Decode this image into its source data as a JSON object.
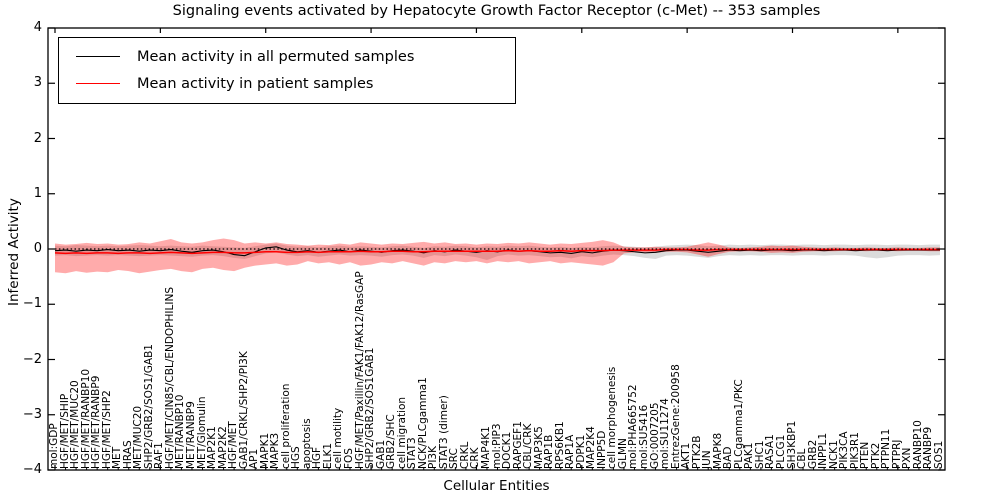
{
  "chart_data": {
    "type": "line",
    "title": "Signaling events activated by Hepatocyte Growth Factor Receptor (c-Met) -- 353 samples",
    "xlabel": "Cellular Entities",
    "ylabel": "Inferred Activity",
    "ylim": [
      -4,
      4
    ],
    "ytick_labels": [
      "4",
      "3",
      "2",
      "1",
      "0",
      "−1",
      "−2",
      "−3",
      "−4"
    ],
    "grid": false,
    "zero_line": {
      "style": "dotted",
      "color": "#000000",
      "value": 0
    },
    "legend": {
      "position": "upper left",
      "items": [
        {
          "label": "Mean activity in all permuted samples",
          "color": "#000000"
        },
        {
          "label": "Mean activity in patient samples",
          "color": "#ff0000"
        }
      ]
    },
    "band_colors": {
      "permuted": "#999999",
      "patient": "#ff0000"
    },
    "band_opacity": {
      "permuted": 0.35,
      "patient": 0.33
    },
    "categories": [
      "mol:GDP",
      "HGF/MET/SHIP",
      "HGF/MET/MUC20",
      "HGF/MET/RANBP10",
      "HGF/MET/RANBP9",
      "HGF/MET/SHP2",
      "MET",
      "HRAS",
      "MET/MUC20",
      "SHP2/GRB2/SOS1/GAB1",
      "RAF1",
      "HGF/MET/CIN85/CBL/ENDOPHILINS",
      "MET/RANBP10",
      "MET/RANBP9",
      "MET/Glomulin",
      "MAP2K1",
      "MAP2K2",
      "HGF/MET",
      "GAB1/CRKL/SHP2/PI3K",
      "AP1",
      "MAPK1",
      "MAPK3",
      "cell proliferation",
      "HGS",
      "apoptosis",
      "HGF",
      "ELK1",
      "cell motility",
      "FOS",
      "HGF/MET/Paxillin/FAK1/FAK12/RasGAP",
      "SHP2/GRB2/SOS1GAB1",
      "GAB1",
      "GRB2/SHC",
      "cell migration",
      "STAT3",
      "NCK/PLCgamma1",
      "PI3K",
      "STAT3 (dimer)",
      "SRC",
      "CRKL",
      "CRK",
      "MAP4K1",
      "mol:PIP3",
      "DOCK1",
      "RAPGEF1",
      "CBL/CRK",
      "MAP3K5",
      "RAP1B",
      "RPS6KB1",
      "RAP1A",
      "PDPK1",
      "MAP2K4",
      "INPP5D",
      "cell morphogenesis",
      "GLMN",
      "mol:PHA665752",
      "mol:SU5416",
      "GO:0007205",
      "mol:SU11274",
      "EntrezGene:200958",
      "AKT1",
      "PTK2B",
      "JUN",
      "MAPK8",
      "BAD",
      "PLCgamma1/PKC",
      "PAK1",
      "SHC1",
      "RASA1",
      "PLCG1",
      "SH3KBP1",
      "CBL",
      "GRB2",
      "INPPL1",
      "NCK1",
      "PIK3CA",
      "PIK3R1",
      "PTEN",
      "PTK2",
      "PTPN11",
      "PTPRJ",
      "PXN",
      "RANBP10",
      "RANBP9",
      "SOS1"
    ],
    "series": [
      {
        "name": "permuted_mean",
        "color": "#000000",
        "values": [
          -0.03,
          -0.02,
          -0.04,
          -0.02,
          -0.03,
          -0.01,
          -0.03,
          -0.02,
          -0.04,
          -0.02,
          -0.03,
          -0.01,
          -0.04,
          -0.06,
          -0.03,
          -0.02,
          -0.05,
          -0.1,
          -0.12,
          -0.05,
          0.02,
          0.04,
          -0.02,
          -0.05,
          -0.03,
          -0.06,
          -0.04,
          -0.02,
          -0.05,
          -0.02,
          -0.04,
          -0.06,
          -0.03,
          -0.02,
          -0.04,
          -0.07,
          -0.03,
          -0.05,
          -0.02,
          -0.04,
          -0.06,
          -0.03,
          -0.05,
          -0.02,
          -0.04,
          -0.03,
          -0.05,
          -0.07,
          -0.06,
          -0.08,
          -0.05,
          -0.07,
          -0.04,
          -0.02,
          -0.03,
          -0.05,
          -0.07,
          -0.06,
          -0.03,
          -0.02,
          -0.02,
          -0.04,
          -0.06,
          -0.04,
          -0.02,
          -0.03,
          -0.02,
          -0.03,
          -0.02,
          -0.02,
          -0.03,
          -0.02,
          -0.02,
          -0.03,
          -0.02,
          -0.02,
          -0.03,
          -0.02,
          -0.02,
          -0.03,
          -0.02,
          -0.02,
          -0.02,
          -0.02,
          -0.02
        ]
      },
      {
        "name": "permuted_band_upper",
        "color": "#999999",
        "values": [
          0.06,
          0.05,
          0.07,
          0.06,
          0.05,
          0.06,
          0.05,
          0.06,
          0.07,
          0.06,
          0.05,
          0.06,
          0.05,
          0.04,
          0.06,
          0.05,
          0.04,
          0.03,
          0.02,
          0.05,
          0.08,
          0.1,
          0.06,
          0.04,
          0.05,
          0.03,
          0.05,
          0.06,
          0.04,
          0.05,
          0.04,
          0.03,
          0.05,
          0.06,
          0.04,
          0.02,
          0.05,
          0.04,
          0.06,
          0.05,
          0.03,
          0.05,
          0.04,
          0.06,
          0.05,
          0.06,
          0.04,
          0.03,
          0.04,
          0.02,
          0.04,
          0.03,
          0.05,
          0.06,
          0.05,
          0.04,
          0.03,
          0.04,
          0.06,
          0.07,
          0.08,
          0.07,
          0.05,
          0.06,
          0.08,
          0.07,
          0.08,
          0.07,
          0.08,
          0.08,
          0.07,
          0.08,
          0.08,
          0.07,
          0.08,
          0.08,
          0.07,
          0.08,
          0.08,
          0.07,
          0.08,
          0.08,
          0.07,
          0.08,
          0.08
        ]
      },
      {
        "name": "permuted_band_lower",
        "color": "#999999",
        "values": [
          -0.12,
          -0.11,
          -0.13,
          -0.12,
          -0.11,
          -0.12,
          -0.11,
          -0.12,
          -0.13,
          -0.12,
          -0.11,
          -0.12,
          -0.13,
          -0.14,
          -0.12,
          -0.11,
          -0.13,
          -0.16,
          -0.18,
          -0.13,
          -0.08,
          -0.06,
          -0.1,
          -0.13,
          -0.11,
          -0.14,
          -0.12,
          -0.1,
          -0.12,
          -0.11,
          -0.12,
          -0.14,
          -0.11,
          -0.1,
          -0.12,
          -0.16,
          -0.11,
          -0.13,
          -0.1,
          -0.12,
          -0.15,
          -0.2,
          -0.13,
          -0.1,
          -0.12,
          -0.11,
          -0.13,
          -0.15,
          -0.14,
          -0.17,
          -0.13,
          -0.15,
          -0.12,
          -0.1,
          -0.11,
          -0.13,
          -0.16,
          -0.18,
          -0.12,
          -0.11,
          -0.12,
          -0.14,
          -0.16,
          -0.13,
          -0.11,
          -0.12,
          -0.11,
          -0.12,
          -0.11,
          -0.11,
          -0.12,
          -0.11,
          -0.11,
          -0.12,
          -0.11,
          -0.11,
          -0.12,
          -0.15,
          -0.17,
          -0.15,
          -0.12,
          -0.11,
          -0.11,
          -0.12,
          -0.11
        ]
      },
      {
        "name": "patient_mean",
        "color": "#ff0000",
        "values": [
          -0.07,
          -0.08,
          -0.07,
          -0.08,
          -0.07,
          -0.07,
          -0.08,
          -0.07,
          -0.07,
          -0.08,
          -0.07,
          -0.06,
          -0.07,
          -0.08,
          -0.07,
          -0.06,
          -0.06,
          -0.07,
          -0.07,
          -0.06,
          -0.05,
          -0.05,
          -0.06,
          -0.06,
          -0.05,
          -0.06,
          -0.05,
          -0.05,
          -0.05,
          -0.04,
          -0.05,
          -0.05,
          -0.04,
          -0.04,
          -0.05,
          -0.05,
          -0.04,
          -0.04,
          -0.04,
          -0.04,
          -0.04,
          -0.04,
          -0.04,
          -0.03,
          -0.04,
          -0.03,
          -0.04,
          -0.04,
          -0.03,
          -0.04,
          -0.03,
          -0.03,
          -0.03,
          -0.02,
          -0.02,
          -0.02,
          -0.02,
          -0.02,
          -0.01,
          -0.01,
          -0.01,
          -0.02,
          -0.02,
          -0.01,
          -0.01,
          -0.01,
          -0.01,
          -0.01,
          -0.01,
          -0.01,
          -0.01,
          -0.01,
          -0.01,
          -0.01,
          -0.01,
          -0.01,
          -0.01,
          -0.01,
          -0.01,
          -0.01,
          -0.01,
          -0.01,
          -0.01,
          -0.01,
          -0.01
        ]
      },
      {
        "name": "patient_band_upper",
        "color": "#ff0000",
        "values": [
          0.1,
          0.08,
          0.09,
          0.11,
          0.09,
          0.1,
          0.08,
          0.09,
          0.12,
          0.1,
          0.14,
          0.18,
          0.12,
          0.1,
          0.12,
          0.16,
          0.19,
          0.16,
          0.1,
          0.12,
          0.1,
          0.12,
          0.09,
          0.08,
          0.06,
          0.08,
          0.07,
          0.1,
          0.08,
          0.12,
          0.1,
          0.08,
          0.1,
          0.09,
          0.11,
          0.13,
          0.1,
          0.12,
          0.09,
          0.1,
          0.08,
          0.1,
          0.09,
          0.11,
          0.1,
          0.12,
          0.1,
          0.08,
          0.1,
          0.09,
          0.11,
          0.13,
          0.16,
          0.12,
          0.04,
          0.03,
          0.03,
          0.04,
          0.03,
          0.03,
          0.04,
          0.08,
          0.12,
          0.08,
          0.03,
          0.02,
          0.03,
          0.04,
          0.06,
          0.05,
          0.06,
          0.04,
          0.03,
          0.02,
          0.03,
          0.02,
          0.02,
          0.03,
          0.02,
          0.02,
          0.03,
          0.02,
          0.02,
          0.03,
          0.03
        ]
      },
      {
        "name": "patient_band_lower",
        "color": "#ff0000",
        "values": [
          -0.42,
          -0.44,
          -0.4,
          -0.43,
          -0.41,
          -0.42,
          -0.38,
          -0.4,
          -0.44,
          -0.41,
          -0.38,
          -0.36,
          -0.4,
          -0.42,
          -0.36,
          -0.34,
          -0.38,
          -0.4,
          -0.34,
          -0.3,
          -0.28,
          -0.26,
          -0.3,
          -0.28,
          -0.22,
          -0.26,
          -0.24,
          -0.28,
          -0.24,
          -0.3,
          -0.28,
          -0.24,
          -0.26,
          -0.22,
          -0.26,
          -0.3,
          -0.24,
          -0.26,
          -0.22,
          -0.24,
          -0.22,
          -0.26,
          -0.22,
          -0.24,
          -0.22,
          -0.26,
          -0.24,
          -0.22,
          -0.26,
          -0.24,
          -0.26,
          -0.28,
          -0.3,
          -0.24,
          -0.08,
          -0.06,
          -0.06,
          -0.07,
          -0.05,
          -0.05,
          -0.06,
          -0.1,
          -0.14,
          -0.09,
          -0.05,
          -0.04,
          -0.04,
          -0.05,
          -0.07,
          -0.06,
          -0.07,
          -0.05,
          -0.04,
          -0.04,
          -0.04,
          -0.03,
          -0.03,
          -0.04,
          -0.03,
          -0.03,
          -0.04,
          -0.03,
          -0.03,
          -0.04,
          -0.04
        ]
      }
    ]
  }
}
